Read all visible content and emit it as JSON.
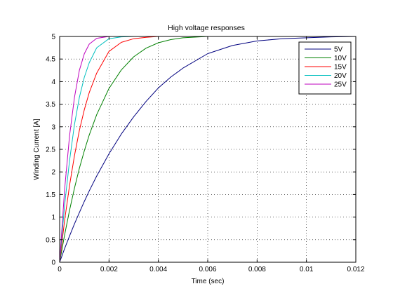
{
  "chart_data": {
    "type": "line",
    "title": "High voltage responses",
    "xlabel": "Time (sec)",
    "ylabel": "Winding Current [A]",
    "xlim": [
      0,
      0.012
    ],
    "ylim": [
      0,
      5
    ],
    "grid": true,
    "legend_position": "top-right",
    "x_ticks": [
      {
        "value": 0,
        "label": "0"
      },
      {
        "value": 0.002,
        "label": "0.002"
      },
      {
        "value": 0.004,
        "label": "0.004"
      },
      {
        "value": 0.006,
        "label": "0.006"
      },
      {
        "value": 0.008,
        "label": "0.008"
      },
      {
        "value": 0.01,
        "label": "0.01"
      },
      {
        "value": 0.012,
        "label": "0.012"
      }
    ],
    "y_ticks": [
      {
        "value": 0,
        "label": "0"
      },
      {
        "value": 0.5,
        "label": "0.5"
      },
      {
        "value": 1,
        "label": "1"
      },
      {
        "value": 1.5,
        "label": "1.5"
      },
      {
        "value": 2,
        "label": "2"
      },
      {
        "value": 2.5,
        "label": "2.5"
      },
      {
        "value": 3,
        "label": "3"
      },
      {
        "value": 3.5,
        "label": "3.5"
      },
      {
        "value": 4,
        "label": "4"
      },
      {
        "value": 4.5,
        "label": "4.5"
      },
      {
        "value": 5,
        "label": "5"
      }
    ],
    "x": [
      0,
      0.0002,
      0.0004,
      0.0006,
      0.0008,
      0.001,
      0.0012,
      0.0015,
      0.002,
      0.0025,
      0.003,
      0.0035,
      0.004,
      0.0045,
      0.005,
      0.006,
      0.007,
      0.008,
      0.009,
      0.01,
      0.011,
      0.012
    ],
    "series": [
      {
        "name": "5V",
        "color": "#00007f",
        "values": [
          0,
          0.3,
          0.58,
          0.85,
          1.1,
          1.35,
          1.58,
          1.91,
          2.4,
          2.84,
          3.22,
          3.56,
          3.86,
          4.1,
          4.3,
          4.62,
          4.8,
          4.9,
          4.95,
          4.97,
          4.99,
          5.0
        ]
      },
      {
        "name": "10V",
        "color": "#008000",
        "values": [
          0,
          0.6,
          1.15,
          1.64,
          2.08,
          2.47,
          2.82,
          3.27,
          3.85,
          4.26,
          4.55,
          4.74,
          4.86,
          4.93,
          4.97,
          5.0,
          5.0,
          5.0,
          5.0,
          5.0,
          5.0,
          5.0
        ]
      },
      {
        "name": "15V",
        "color": "#ff0000",
        "values": [
          0,
          0.92,
          1.7,
          2.36,
          2.92,
          3.38,
          3.76,
          4.19,
          4.67,
          4.87,
          4.95,
          4.98,
          5.0,
          5.0,
          5.0,
          5.0,
          5.0,
          5.0,
          5.0,
          5.0,
          5.0,
          5.0
        ]
      },
      {
        "name": "20V",
        "color": "#00bfbf",
        "values": [
          0,
          1.25,
          2.25,
          3.05,
          3.65,
          4.1,
          4.42,
          4.75,
          4.95,
          4.99,
          5.0,
          5.0,
          5.0,
          5.0,
          5.0,
          5.0,
          5.0,
          5.0,
          5.0,
          5.0,
          5.0,
          5.0
        ]
      },
      {
        "name": "25V",
        "color": "#bf00bf",
        "values": [
          0,
          1.6,
          2.8,
          3.65,
          4.25,
          4.62,
          4.83,
          4.96,
          5.0,
          5.0,
          5.0,
          5.0,
          5.0,
          5.0,
          5.0,
          5.0,
          5.0,
          5.0,
          5.0,
          5.0,
          5.0,
          5.0
        ]
      }
    ]
  }
}
